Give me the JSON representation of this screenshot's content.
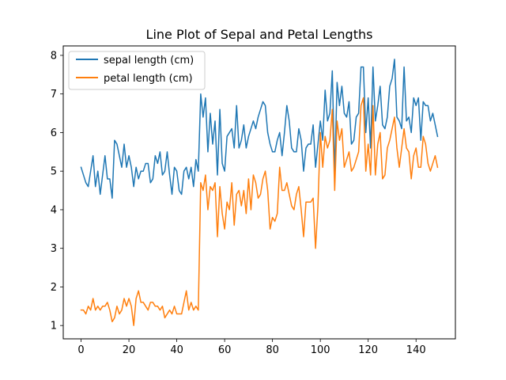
{
  "chart_data": {
    "type": "line",
    "title": "Line Plot of Sepal and Petal Lengths",
    "xlabel": "",
    "ylabel": "",
    "xlim": [
      -7.45,
      156.45
    ],
    "ylim": [
      0.655,
      8.245
    ],
    "xticks": [
      0,
      20,
      40,
      60,
      80,
      100,
      120,
      140
    ],
    "yticks": [
      1,
      2,
      3,
      4,
      5,
      6,
      7,
      8
    ],
    "grid": false,
    "legend_position": "upper left",
    "x": [
      0,
      1,
      2,
      3,
      4,
      5,
      6,
      7,
      8,
      9,
      10,
      11,
      12,
      13,
      14,
      15,
      16,
      17,
      18,
      19,
      20,
      21,
      22,
      23,
      24,
      25,
      26,
      27,
      28,
      29,
      30,
      31,
      32,
      33,
      34,
      35,
      36,
      37,
      38,
      39,
      40,
      41,
      42,
      43,
      44,
      45,
      46,
      47,
      48,
      49,
      50,
      51,
      52,
      53,
      54,
      55,
      56,
      57,
      58,
      59,
      60,
      61,
      62,
      63,
      64,
      65,
      66,
      67,
      68,
      69,
      70,
      71,
      72,
      73,
      74,
      75,
      76,
      77,
      78,
      79,
      80,
      81,
      82,
      83,
      84,
      85,
      86,
      87,
      88,
      89,
      90,
      91,
      92,
      93,
      94,
      95,
      96,
      97,
      98,
      99,
      100,
      101,
      102,
      103,
      104,
      105,
      106,
      107,
      108,
      109,
      110,
      111,
      112,
      113,
      114,
      115,
      116,
      117,
      118,
      119,
      120,
      121,
      122,
      123,
      124,
      125,
      126,
      127,
      128,
      129,
      130,
      131,
      132,
      133,
      134,
      135,
      136,
      137,
      138,
      139,
      140,
      141,
      142,
      143,
      144,
      145,
      146,
      147,
      148,
      149
    ],
    "series": [
      {
        "name": "sepal length (cm)",
        "color": "#1f77b4",
        "values": [
          5.1,
          4.9,
          4.7,
          4.6,
          5.0,
          5.4,
          4.6,
          5.0,
          4.4,
          4.9,
          5.4,
          4.8,
          4.8,
          4.3,
          5.8,
          5.7,
          5.4,
          5.1,
          5.7,
          5.1,
          5.4,
          5.1,
          4.6,
          5.1,
          4.8,
          5.0,
          5.0,
          5.2,
          5.2,
          4.7,
          4.8,
          5.4,
          5.2,
          5.5,
          4.9,
          5.0,
          5.5,
          4.9,
          4.4,
          5.1,
          5.0,
          4.5,
          4.4,
          5.0,
          5.1,
          4.8,
          5.1,
          4.6,
          5.3,
          5.0,
          7.0,
          6.4,
          6.9,
          5.5,
          6.5,
          5.7,
          6.3,
          4.9,
          6.6,
          5.2,
          5.0,
          5.9,
          6.0,
          6.1,
          5.6,
          6.7,
          5.6,
          5.8,
          6.2,
          5.6,
          5.9,
          6.1,
          6.3,
          6.1,
          6.4,
          6.6,
          6.8,
          6.7,
          6.0,
          5.7,
          5.5,
          5.5,
          5.8,
          6.0,
          5.4,
          6.0,
          6.7,
          6.3,
          5.6,
          5.5,
          5.5,
          6.1,
          5.8,
          5.0,
          5.6,
          5.7,
          5.7,
          6.2,
          5.1,
          5.7,
          6.3,
          5.8,
          7.1,
          6.3,
          6.5,
          7.6,
          4.9,
          7.3,
          6.7,
          7.2,
          6.5,
          6.4,
          6.8,
          5.7,
          5.8,
          6.4,
          6.5,
          7.7,
          7.7,
          6.0,
          6.9,
          5.6,
          7.7,
          6.3,
          6.7,
          7.2,
          6.2,
          6.1,
          6.4,
          7.2,
          7.4,
          7.9,
          6.4,
          6.3,
          6.1,
          7.7,
          6.3,
          6.4,
          6.0,
          6.9,
          6.7,
          6.9,
          5.8,
          6.8,
          6.7,
          6.7,
          6.3,
          6.5,
          6.2,
          5.9
        ]
      },
      {
        "name": "petal length (cm)",
        "color": "#ff7f0e",
        "values": [
          1.4,
          1.4,
          1.3,
          1.5,
          1.4,
          1.7,
          1.4,
          1.5,
          1.4,
          1.5,
          1.5,
          1.6,
          1.4,
          1.1,
          1.2,
          1.5,
          1.3,
          1.4,
          1.7,
          1.5,
          1.7,
          1.5,
          1.0,
          1.7,
          1.9,
          1.6,
          1.6,
          1.5,
          1.4,
          1.6,
          1.6,
          1.5,
          1.5,
          1.4,
          1.5,
          1.2,
          1.3,
          1.4,
          1.3,
          1.5,
          1.3,
          1.3,
          1.3,
          1.6,
          1.9,
          1.4,
          1.6,
          1.4,
          1.5,
          1.4,
          4.7,
          4.5,
          4.9,
          4.0,
          4.6,
          4.5,
          4.7,
          3.3,
          4.6,
          3.9,
          3.5,
          4.2,
          4.0,
          4.7,
          3.6,
          4.4,
          4.5,
          4.1,
          4.5,
          3.9,
          4.8,
          4.0,
          4.9,
          4.7,
          4.3,
          4.4,
          4.8,
          5.0,
          4.5,
          3.5,
          3.8,
          3.7,
          3.9,
          5.1,
          4.5,
          4.5,
          4.7,
          4.4,
          4.1,
          4.0,
          4.4,
          4.6,
          4.0,
          3.3,
          4.2,
          4.2,
          4.2,
          4.3,
          3.0,
          4.1,
          6.0,
          5.1,
          5.9,
          5.6,
          5.8,
          6.6,
          4.5,
          6.3,
          5.8,
          6.1,
          5.1,
          5.3,
          5.5,
          5.0,
          5.1,
          5.3,
          5.5,
          6.7,
          6.9,
          5.0,
          5.7,
          4.9,
          6.7,
          4.9,
          5.7,
          6.0,
          4.8,
          4.9,
          5.6,
          5.8,
          6.1,
          6.4,
          5.6,
          5.1,
          5.6,
          6.1,
          5.6,
          5.5,
          4.8,
          5.4,
          5.6,
          5.1,
          5.1,
          5.9,
          5.7,
          5.2,
          5.0,
          5.2,
          5.4,
          5.1
        ]
      }
    ]
  }
}
